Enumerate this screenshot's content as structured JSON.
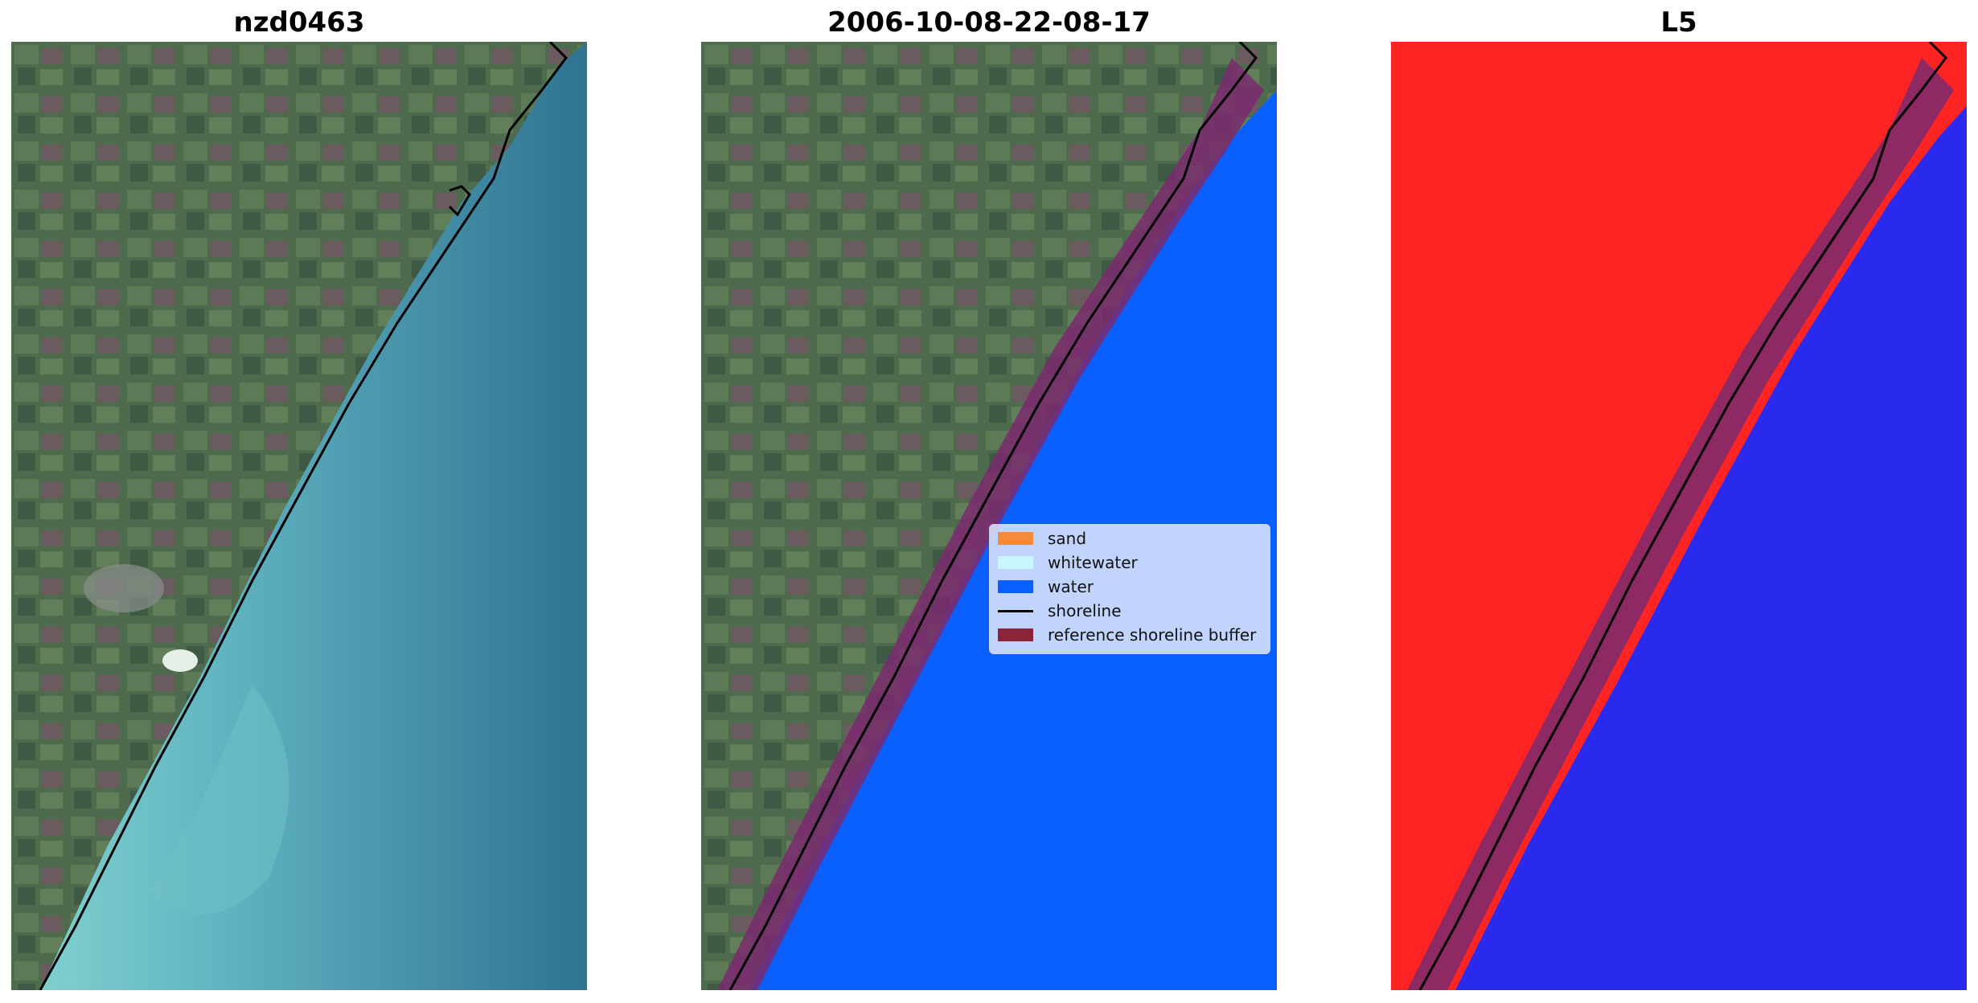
{
  "panels": [
    {
      "title": "nzd0463",
      "kind": "rgb"
    },
    {
      "title": "2006-10-08-22-08-17",
      "kind": "classified"
    },
    {
      "title": "L5",
      "kind": "index"
    }
  ],
  "legend": {
    "items": [
      {
        "label": "sand",
        "color": "#f58a3c",
        "kind": "patch"
      },
      {
        "label": "whitewater",
        "color": "#c9f6ff",
        "kind": "patch"
      },
      {
        "label": "water",
        "color": "#0a5fff",
        "kind": "patch"
      },
      {
        "label": "shoreline",
        "color": "#000000",
        "kind": "line"
      },
      {
        "label": "reference shoreline buffer",
        "color": "#8a2436",
        "kind": "patch"
      }
    ]
  },
  "colors": {
    "land": "#4f6b4e",
    "sea_shallow": "#6fc1c6",
    "sea_deep": "#2f7392",
    "water_class": "#0a5fff",
    "buffer": "#7a2a6e",
    "index_land": "#ff2222",
    "index_water": "#2a2aee"
  }
}
